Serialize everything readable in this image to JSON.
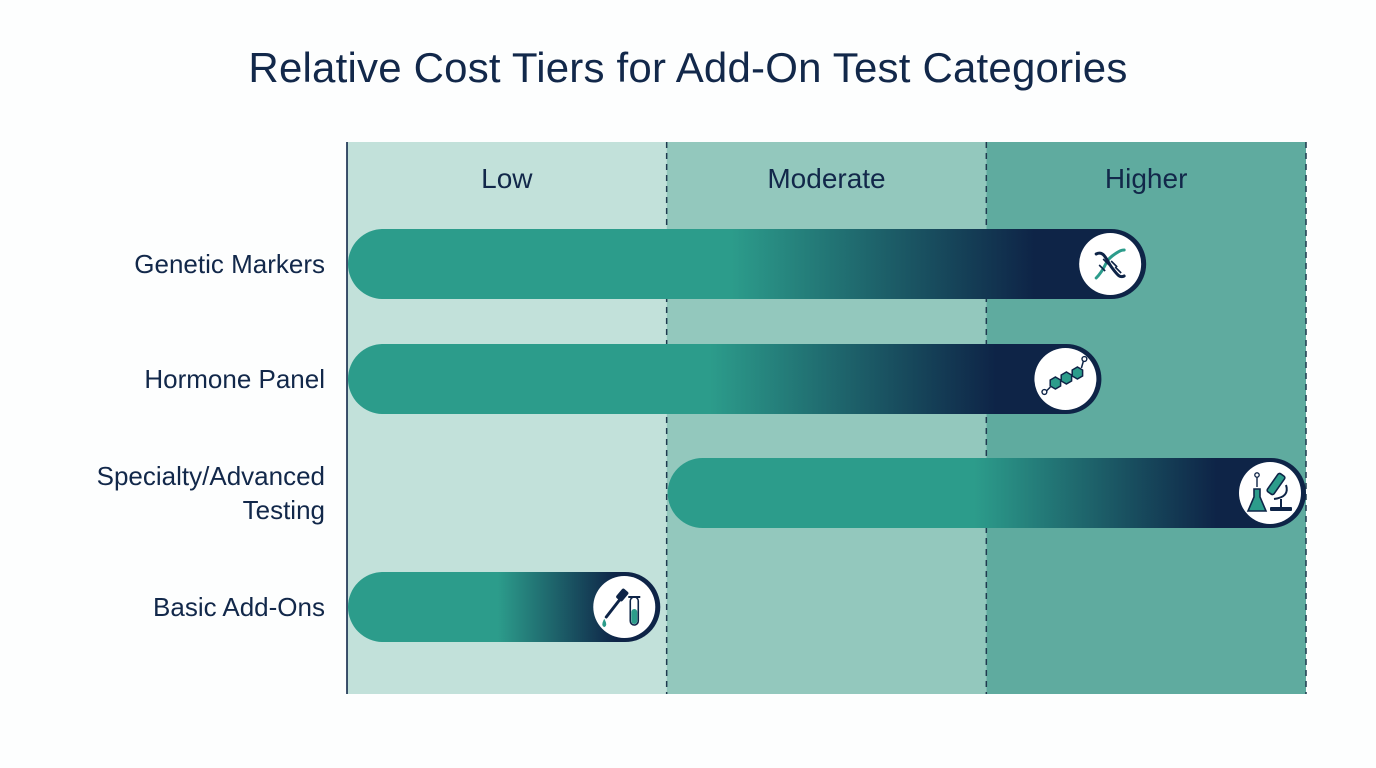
{
  "colors": {
    "tier_low": "#c2e1da",
    "tier_moderate": "#93c8bd",
    "tier_higher": "#5fab9f",
    "bar_teal": "#2c9c8b",
    "bar_navy": "#0e2447",
    "text": "#12284a"
  },
  "chart_data": {
    "type": "bar",
    "orientation": "horizontal",
    "title": "Relative Cost Tiers for Add-On Test Categories",
    "tiers": [
      "Low",
      "Moderate",
      "Higher"
    ],
    "x_range": [
      0,
      3
    ],
    "grid": false,
    "legend": "none",
    "bars": [
      {
        "category": "Genetic Markers",
        "label_lines": [
          "Genetic Markers"
        ],
        "start": 0,
        "end": 2.5,
        "icon": "dna-icon"
      },
      {
        "category": "Hormone Panel",
        "label_lines": [
          "Hormone Panel"
        ],
        "start": 0,
        "end": 2.36,
        "icon": "molecule-icon"
      },
      {
        "category": "Specialty/Advanced Testing",
        "label_lines": [
          "Specialty/Advanced",
          "Testing"
        ],
        "start": 1,
        "end": 3,
        "icon": "microscope-flask-icon"
      },
      {
        "category": "Basic Add-Ons",
        "label_lines": [
          "Basic Add-Ons"
        ],
        "start": 0,
        "end": 0.98,
        "icon": "dropper-tube-icon"
      }
    ]
  }
}
